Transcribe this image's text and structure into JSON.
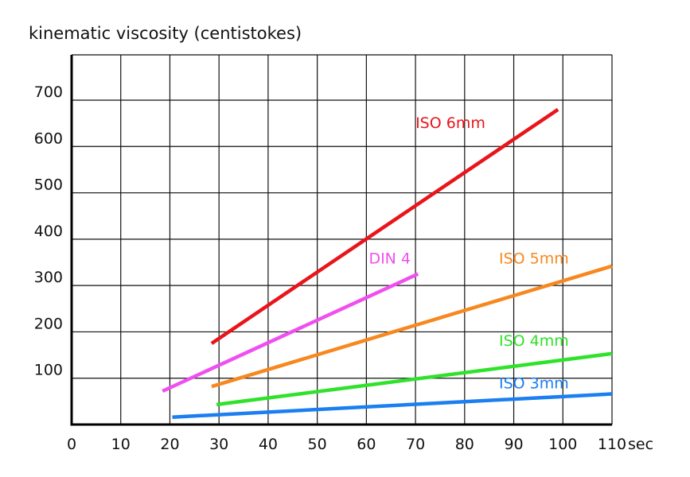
{
  "chart_data": {
    "type": "line",
    "title": "",
    "ylabel": "kinematic viscosity (centistokes)",
    "xlabel": "",
    "x_unit_label": "sec",
    "xlim": [
      0,
      110
    ],
    "ylim": [
      0,
      700
    ],
    "x_ticks": [
      0,
      10,
      20,
      30,
      40,
      50,
      60,
      70,
      80,
      90,
      100,
      110
    ],
    "y_ticks": [
      100,
      200,
      300,
      400,
      500,
      600,
      700
    ],
    "grid": true,
    "series": [
      {
        "name": "ISO 6mm",
        "color": "#e8151b",
        "x": [
          28.5,
          99
        ],
        "y": [
          175,
          680
        ]
      },
      {
        "name": "DIN 4",
        "color": "#f04ff0",
        "x": [
          18.5,
          70.5
        ],
        "y": [
          72,
          325
        ]
      },
      {
        "name": "ISO 5mm",
        "color": "#f7881f",
        "x": [
          28.5,
          110
        ],
        "y": [
          82,
          342
        ]
      },
      {
        "name": "ISO 4mm",
        "color": "#2fe22a",
        "x": [
          29.5,
          110
        ],
        "y": [
          43,
          153
        ]
      },
      {
        "name": "ISO 3mm",
        "color": "#1b7ff0",
        "x": [
          20.5,
          110
        ],
        "y": [
          16,
          66
        ]
      }
    ],
    "label_values": [
      {
        "series": "ISO 6mm",
        "x": 70,
        "y": 640
      },
      {
        "series": "DIN 4",
        "x": 60.5,
        "y": 347
      },
      {
        "series": "ISO 5mm",
        "x": 87,
        "y": 347
      },
      {
        "series": "ISO 4mm",
        "x": 87,
        "y": 170
      },
      {
        "series": "ISO 3mm",
        "x": 87,
        "y": 78
      }
    ]
  }
}
